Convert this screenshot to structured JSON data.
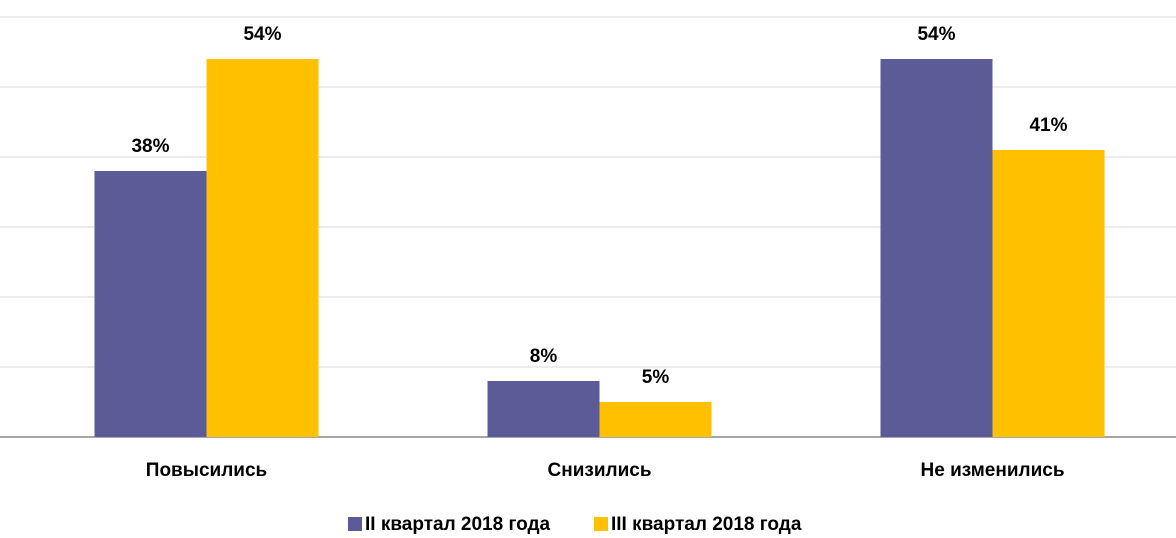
{
  "chart_data": {
    "type": "bar",
    "categories": [
      "Повысились",
      "Снизились",
      "Не изменились"
    ],
    "series": [
      {
        "name": "II квартал 2018 года",
        "color": "#5b5b98",
        "values": [
          38,
          8,
          54
        ],
        "value_labels": [
          "38%",
          "8%",
          "54%"
        ]
      },
      {
        "name": "III квартал 2018 года",
        "color": "#ffc000",
        "values": [
          54,
          5,
          41
        ],
        "value_labels": [
          "54%",
          "5%",
          "41%"
        ]
      }
    ],
    "ylim": [
      0,
      60
    ],
    "yticks": [
      0,
      10,
      20,
      30,
      40,
      50,
      60
    ],
    "grid": true,
    "legend": "bottom"
  }
}
